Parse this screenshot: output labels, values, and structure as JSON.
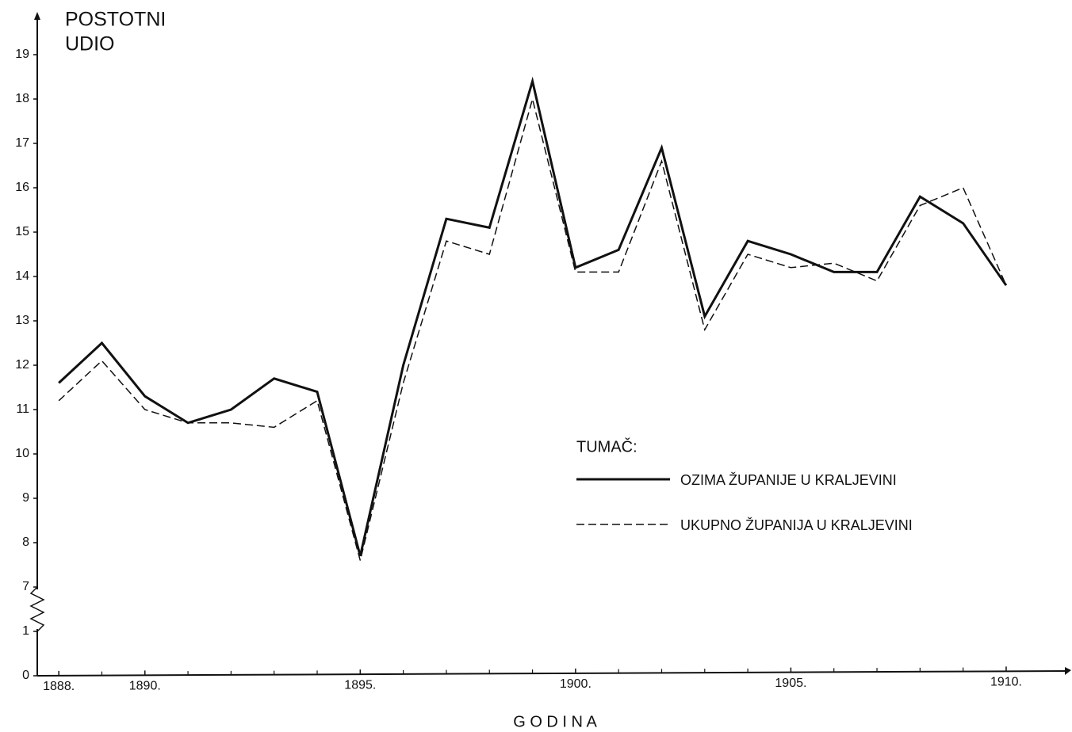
{
  "chart_data": {
    "type": "line",
    "y_label": [
      "POSTOTNI",
      "UDIO"
    ],
    "x_label": "G O D I N A",
    "legend_title": "TUMAČ:",
    "legend": "center-right",
    "x": [
      1888,
      1889,
      1890,
      1891,
      1892,
      1893,
      1894,
      1895,
      1896,
      1897,
      1898,
      1899,
      1900,
      1901,
      1902,
      1903,
      1904,
      1905,
      1906,
      1907,
      1908,
      1909,
      1910
    ],
    "xlim": [
      1887.5,
      1911.4
    ],
    "xticks": [
      {
        "value": 1888,
        "label": "1888."
      },
      {
        "value": 1890,
        "label": "1890."
      },
      {
        "value": 1895,
        "label": "1895."
      },
      {
        "value": 1900,
        "label": "1900."
      },
      {
        "value": 1905,
        "label": "1905."
      },
      {
        "value": 1910,
        "label": "1910."
      }
    ],
    "xminor_ticks": [
      1889,
      1891,
      1892,
      1893,
      1894,
      1896,
      1897,
      1898,
      1899,
      1901,
      1902,
      1903,
      1904,
      1906,
      1907,
      1908,
      1909
    ],
    "ylim": [
      0,
      19
    ],
    "yticks": [
      0,
      1,
      7,
      8,
      9,
      10,
      11,
      12,
      13,
      14,
      15,
      16,
      17,
      18,
      19
    ],
    "axis_break": [
      1,
      7
    ],
    "series": [
      {
        "name": "OZIMA ŽUPANIJE U KRALJEVINI",
        "color": "#111111",
        "style": "solid",
        "values": [
          11.6,
          12.5,
          11.3,
          10.7,
          11.0,
          11.7,
          11.4,
          7.7,
          12.0,
          15.3,
          15.1,
          18.4,
          14.2,
          14.6,
          16.9,
          13.1,
          14.8,
          14.5,
          14.1,
          14.1,
          15.8,
          15.2,
          13.8
        ]
      },
      {
        "name": "UKUPNO ŽUPANIJA U KRALJEVINI",
        "color": "#111111",
        "style": "dashed",
        "values": [
          11.2,
          12.1,
          11.0,
          10.7,
          10.7,
          10.6,
          11.2,
          7.6,
          11.6,
          14.8,
          14.5,
          18.0,
          14.1,
          14.1,
          16.6,
          12.8,
          14.5,
          14.2,
          14.3,
          13.9,
          15.6,
          16.0,
          13.8
        ]
      }
    ]
  }
}
